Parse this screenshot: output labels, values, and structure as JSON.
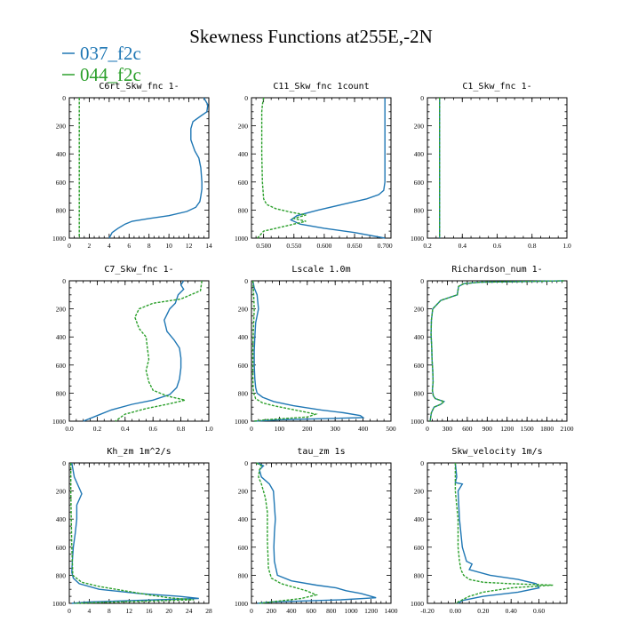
{
  "title": "Skewness Functions at255E,-2N",
  "legend": [
    {
      "label": "037_f2c",
      "color": "#1f77b4",
      "dash": false
    },
    {
      "label": "044_f2c",
      "color": "#2ca02c",
      "dash": true
    }
  ],
  "chart_data": [
    {
      "type": "line",
      "title": "C6rt_Skw_fnc   1-",
      "xlim": [
        0,
        14
      ],
      "ylim": [
        1000,
        0
      ],
      "xticks": [
        0,
        2,
        4,
        6,
        8,
        10,
        12,
        14
      ],
      "xtick_labels": [
        "0",
        "2",
        "4",
        "6",
        "8",
        "10",
        "12",
        "14"
      ],
      "yticks": [
        0,
        200,
        400,
        600,
        800,
        1000
      ],
      "ytick_labels": [
        "0",
        "200",
        "400",
        "600",
        "800",
        "1000"
      ],
      "series": [
        {
          "name": "037_f2c",
          "x": [
            13.5,
            13.9,
            13.8,
            13.2,
            12.4,
            12.2,
            12.2,
            12.6,
            13.0,
            13.2,
            13.3,
            13.3,
            13.2,
            13.1,
            12.7,
            11.8,
            10.0,
            8.0,
            6.3,
            5.6,
            4.9,
            4.3,
            4.0
          ],
          "y": [
            0,
            50,
            100,
            130,
            170,
            220,
            300,
            380,
            430,
            500,
            600,
            650,
            700,
            740,
            780,
            810,
            840,
            860,
            880,
            900,
            930,
            960,
            1000
          ]
        },
        {
          "name": "044_f2c",
          "x": [
            1.0,
            1.0,
            1.0,
            1.0,
            1.0,
            1.0,
            1.0
          ],
          "y": [
            0,
            200,
            400,
            600,
            800,
            900,
            1000
          ]
        }
      ]
    },
    {
      "type": "line",
      "title": "C11_Skw_fnc   1count",
      "xlim": [
        0.48,
        0.71
      ],
      "ylim": [
        1000,
        0
      ],
      "xticks": [
        0.5,
        0.55,
        0.6,
        0.65,
        0.7
      ],
      "xtick_labels": [
        "0.500",
        "0.550",
        "0.600",
        "0.650",
        "0.700"
      ],
      "yticks": [
        0,
        200,
        400,
        600,
        800,
        1000
      ],
      "ytick_labels": [
        "0",
        "200",
        "400",
        "600",
        "800",
        "1000"
      ],
      "series": [
        {
          "name": "037_f2c",
          "x": [
            0.7,
            0.7,
            0.7,
            0.7,
            0.698,
            0.69,
            0.67,
            0.63,
            0.59,
            0.555,
            0.545,
            0.56,
            0.6,
            0.65,
            0.7
          ],
          "y": [
            0,
            200,
            400,
            600,
            660,
            690,
            720,
            760,
            800,
            840,
            870,
            900,
            930,
            960,
            1000
          ]
        },
        {
          "name": "044_f2c",
          "x": [
            0.5,
            0.498,
            0.497,
            0.497,
            0.497,
            0.498,
            0.5,
            0.505,
            0.52,
            0.545,
            0.57,
            0.55,
            0.57,
            0.54,
            0.5,
            0.49
          ],
          "y": [
            0,
            50,
            100,
            200,
            400,
            600,
            720,
            760,
            790,
            815,
            835,
            860,
            880,
            910,
            950,
            1000
          ]
        }
      ]
    },
    {
      "type": "line",
      "title": "C1_Skw_fnc   1-",
      "xlim": [
        0.2,
        1.0
      ],
      "ylim": [
        1000,
        0
      ],
      "xticks": [
        0.2,
        0.4,
        0.6,
        0.8,
        1.0
      ],
      "xtick_labels": [
        "0.2",
        "0.4",
        "0.6",
        "0.8",
        "1.0"
      ],
      "yticks": [
        0,
        200,
        400,
        600,
        800,
        1000
      ],
      "ytick_labels": [
        "0",
        "200",
        "400",
        "600",
        "800",
        "1000"
      ],
      "series": [
        {
          "name": "037_f2c",
          "x": [
            0.27,
            0.27,
            0.27,
            0.27,
            0.27,
            0.27
          ],
          "y": [
            0,
            200,
            400,
            600,
            800,
            1000
          ]
        },
        {
          "name": "044_f2c",
          "x": [
            0.27,
            0.27,
            0.27,
            0.27,
            0.27,
            0.27
          ],
          "y": [
            0,
            200,
            400,
            600,
            800,
            1000
          ]
        }
      ]
    },
    {
      "type": "line",
      "title": "C7_Skw_fnc   1-",
      "xlim": [
        0.0,
        1.0
      ],
      "ylim": [
        1000,
        0
      ],
      "xticks": [
        0.0,
        0.2,
        0.4,
        0.6,
        0.8,
        1.0
      ],
      "xtick_labels": [
        "0.0",
        "0.2",
        "0.4",
        "0.6",
        "0.8",
        "1.0"
      ],
      "yticks": [
        0,
        200,
        400,
        600,
        800,
        1000
      ],
      "ytick_labels": [
        "0",
        "200",
        "400",
        "600",
        "800",
        "1000"
      ],
      "series": [
        {
          "name": "037_f2c",
          "x": [
            0.82,
            0.8,
            0.82,
            0.78,
            0.76,
            0.72,
            0.68,
            0.7,
            0.75,
            0.79,
            0.8,
            0.8,
            0.79,
            0.77,
            0.72,
            0.6,
            0.45,
            0.3,
            0.2,
            0.1
          ],
          "y": [
            0,
            30,
            60,
            100,
            160,
            200,
            280,
            360,
            420,
            480,
            550,
            620,
            700,
            760,
            810,
            850,
            880,
            920,
            960,
            1000
          ]
        },
        {
          "name": "044_f2c",
          "x": [
            0.95,
            0.94,
            0.8,
            0.6,
            0.5,
            0.47,
            0.5,
            0.55,
            0.56,
            0.57,
            0.55,
            0.57,
            0.6,
            0.65,
            0.7,
            0.83,
            0.7,
            0.55,
            0.4,
            0.33
          ],
          "y": [
            0,
            70,
            130,
            160,
            200,
            260,
            340,
            400,
            480,
            560,
            640,
            720,
            780,
            800,
            820,
            850,
            880,
            910,
            950,
            1000
          ]
        }
      ]
    },
    {
      "type": "line",
      "title": "Lscale   1.0m",
      "xlim": [
        0,
        500
      ],
      "ylim": [
        1000,
        0
      ],
      "xticks": [
        0,
        100,
        200,
        300,
        400,
        500
      ],
      "xtick_labels": [
        "0",
        "100",
        "200",
        "300",
        "400",
        "500"
      ],
      "yticks": [
        0,
        200,
        400,
        600,
        800,
        1000
      ],
      "ytick_labels": [
        "0",
        "200",
        "400",
        "600",
        "800",
        "1000"
      ],
      "series": [
        {
          "name": "037_f2c",
          "x": [
            5,
            10,
            20,
            25,
            20,
            15,
            12,
            10,
            10,
            12,
            15,
            20,
            40,
            80,
            150,
            250,
            330,
            390,
            400,
            100,
            10
          ],
          "y": [
            0,
            50,
            100,
            200,
            250,
            300,
            400,
            500,
            600,
            700,
            760,
            800,
            830,
            860,
            890,
            920,
            940,
            960,
            975,
            990,
            1000
          ]
        },
        {
          "name": "044_f2c",
          "x": [
            5,
            8,
            10,
            8,
            6,
            5,
            5,
            5,
            6,
            8,
            15,
            40,
            80,
            130,
            180,
            230,
            200,
            50,
            10
          ],
          "y": [
            0,
            100,
            200,
            300,
            400,
            500,
            600,
            700,
            760,
            800,
            840,
            870,
            890,
            910,
            930,
            950,
            970,
            990,
            1000
          ]
        }
      ]
    },
    {
      "type": "line",
      "title": "Richardson_num   1-",
      "xlim": [
        0,
        2100
      ],
      "ylim": [
        1000,
        0
      ],
      "xticks": [
        0,
        300,
        600,
        900,
        1200,
        1500,
        1800,
        2100
      ],
      "xtick_labels": [
        "0",
        "300",
        "600",
        "900",
        "1200",
        "1500",
        "1800",
        "2100"
      ],
      "yticks": [
        0,
        200,
        400,
        600,
        800,
        1000
      ],
      "ytick_labels": [
        "0",
        "200",
        "400",
        "600",
        "800",
        "1000"
      ],
      "series": [
        {
          "name": "037_f2c",
          "x": [
            2050,
            1500,
            800,
            550,
            470,
            450,
            200,
            80,
            60,
            55,
            65,
            70,
            80,
            85,
            75,
            90,
            120,
            250,
            200,
            100,
            60,
            40
          ],
          "y": [
            0,
            5,
            10,
            20,
            40,
            100,
            140,
            200,
            280,
            380,
            480,
            560,
            640,
            720,
            780,
            820,
            840,
            860,
            880,
            900,
            940,
            1000
          ]
        },
        {
          "name": "044_f2c",
          "x": [
            2050,
            1500,
            800,
            550,
            470,
            450,
            200,
            80,
            60,
            55,
            65,
            70,
            80,
            85,
            75,
            90,
            120,
            250,
            200,
            100,
            60,
            40
          ],
          "y": [
            0,
            5,
            10,
            20,
            40,
            100,
            140,
            200,
            280,
            380,
            480,
            560,
            640,
            720,
            780,
            820,
            840,
            860,
            880,
            900,
            940,
            1000
          ]
        }
      ]
    },
    {
      "type": "line",
      "title": "Kh_zm   1m^2/s",
      "xlim": [
        0,
        28
      ],
      "ylim": [
        1000,
        0
      ],
      "xticks": [
        0,
        4,
        8,
        12,
        16,
        20,
        24,
        28
      ],
      "xtick_labels": [
        "0",
        "4",
        "8",
        "12",
        "16",
        "20",
        "24",
        "28"
      ],
      "yticks": [
        0,
        200,
        400,
        600,
        800,
        1000
      ],
      "ytick_labels": [
        "0",
        "200",
        "400",
        "600",
        "800",
        "1000"
      ],
      "series": [
        {
          "name": "037_f2c",
          "x": [
            0.5,
            1.0,
            2.0,
            2.5,
            2.0,
            1.5,
            1.5,
            1.2,
            0.8,
            0.6,
            0.5,
            0.8,
            2.0,
            6.0,
            14.0,
            22.0,
            26.0,
            4.0,
            0.5
          ],
          "y": [
            0,
            100,
            180,
            220,
            260,
            300,
            400,
            500,
            600,
            700,
            780,
            820,
            860,
            900,
            930,
            950,
            965,
            990,
            1000
          ]
        },
        {
          "name": "044_f2c",
          "x": [
            0.3,
            0.3,
            0.4,
            0.5,
            0.6,
            0.7,
            2.5,
            6.0,
            11.0,
            16.0,
            20.0,
            25.0,
            10.0,
            1.0
          ],
          "y": [
            0,
            200,
            400,
            600,
            700,
            800,
            850,
            880,
            910,
            940,
            960,
            975,
            990,
            1000
          ]
        }
      ]
    },
    {
      "type": "line",
      "title": "tau_zm   1s",
      "xlim": [
        0,
        1400
      ],
      "ylim": [
        1000,
        0
      ],
      "xticks": [
        0,
        200,
        400,
        600,
        800,
        1000,
        1200,
        1400
      ],
      "xtick_labels": [
        "0",
        "200",
        "400",
        "600",
        "800",
        "1000",
        "1200",
        "1400"
      ],
      "yticks": [
        0,
        200,
        400,
        600,
        800,
        1000
      ],
      "ytick_labels": [
        "0",
        "200",
        "400",
        "600",
        "800",
        "1000"
      ],
      "series": [
        {
          "name": "037_f2c",
          "x": [
            60,
            120,
            80,
            100,
            180,
            220,
            230,
            240,
            230,
            225,
            230,
            260,
            400,
            650,
            850,
            950,
            1100,
            1250,
            900,
            200,
            60
          ],
          "y": [
            0,
            20,
            50,
            100,
            150,
            200,
            300,
            400,
            500,
            600,
            700,
            800,
            840,
            870,
            890,
            910,
            930,
            960,
            975,
            990,
            1000
          ]
        },
        {
          "name": "044_f2c",
          "x": [
            50,
            100,
            80,
            70,
            100,
            140,
            160,
            160,
            160,
            165,
            170,
            200,
            300,
            450,
            550,
            650,
            500,
            200,
            80
          ],
          "y": [
            0,
            20,
            50,
            100,
            150,
            250,
            350,
            450,
            550,
            650,
            750,
            820,
            860,
            890,
            910,
            940,
            965,
            990,
            1000
          ]
        }
      ]
    },
    {
      "type": "line",
      "title": "Skw_velocity   1m/s",
      "xlim": [
        -0.2,
        0.8
      ],
      "ylim": [
        1000,
        0
      ],
      "xticks": [
        -0.2,
        0.0,
        0.2,
        0.4,
        0.6
      ],
      "xtick_labels": [
        "-0.20",
        "0.00",
        "0.20",
        "0.40",
        "0.60"
      ],
      "yticks": [
        0,
        200,
        400,
        600,
        800,
        1000
      ],
      "ytick_labels": [
        "0",
        "200",
        "400",
        "600",
        "800",
        "1000"
      ],
      "series": [
        {
          "name": "037_f2c",
          "x": [
            0.0,
            0.01,
            0.0,
            0.05,
            0.02,
            0.03,
            0.05,
            0.08,
            0.12,
            0.1,
            0.25,
            0.45,
            0.58,
            0.6,
            0.45,
            0.2,
            0.05,
            0.02
          ],
          "y": [
            0,
            100,
            140,
            150,
            200,
            400,
            600,
            700,
            720,
            760,
            800,
            830,
            860,
            890,
            920,
            950,
            980,
            1000
          ]
        },
        {
          "name": "044_f2c",
          "x": [
            0.0,
            0.0,
            0.0,
            0.02,
            0.02,
            0.03,
            0.04,
            0.06,
            0.1,
            0.2,
            0.4,
            0.7,
            0.4,
            0.2,
            0.1,
            0.0
          ],
          "y": [
            0,
            100,
            200,
            400,
            600,
            700,
            760,
            800,
            830,
            850,
            860,
            870,
            890,
            920,
            950,
            1000
          ]
        }
      ]
    }
  ]
}
